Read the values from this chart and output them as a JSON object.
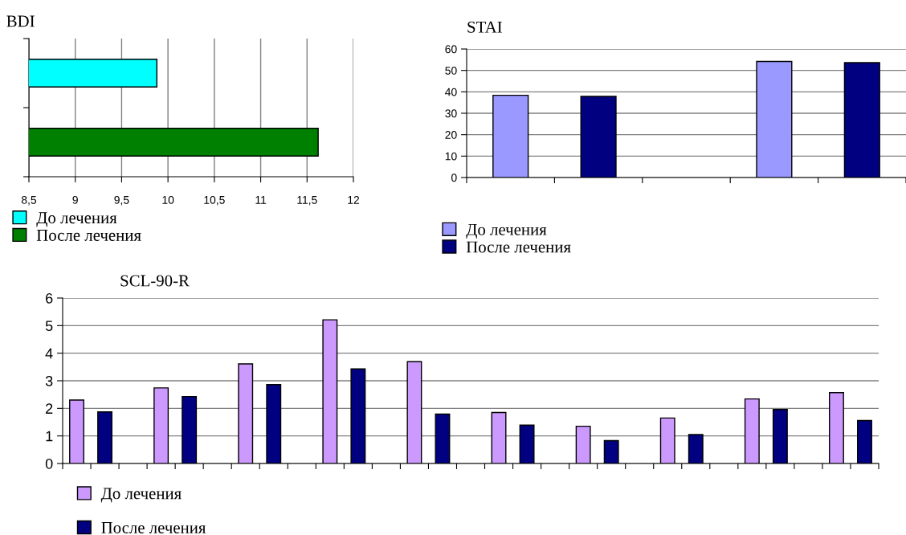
{
  "chart_data": [
    {
      "type": "bar",
      "title": "BDI",
      "orientation": "horizontal",
      "stacked": true,
      "categories": [
        null,
        null
      ],
      "xlim": [
        8.5,
        12
      ],
      "xticks": [
        {
          "value": 8.5,
          "label": "8,5"
        },
        9,
        {
          "value": 9.5,
          "label": "9,5"
        },
        10,
        {
          "value": 10.5,
          "label": "10,5"
        },
        11,
        {
          "value": 11.5,
          "label": "11,5"
        },
        12
      ],
      "grid": "x",
      "legend": "bottom",
      "tick_labels": "x",
      "series": [
        {
          "name": "До лечения",
          "color": "#00ffff",
          "values": [
            9.88,
            null
          ]
        },
        {
          "name": "После лечения",
          "color": "#008000",
          "values": [
            null,
            11.62
          ]
        }
      ]
    },
    {
      "type": "bar",
      "title": "STAI",
      "stacked": true,
      "categories": [
        null,
        null,
        null,
        null,
        null
      ],
      "ylim": [
        0,
        60
      ],
      "yticks": [
        0,
        10,
        20,
        30,
        40,
        50,
        60
      ],
      "grid": "y",
      "legend": "bottom",
      "tick_labels": "y",
      "series": [
        {
          "name": "До лечения",
          "color": "#9999ff",
          "values": [
            38.4,
            null,
            null,
            54.2,
            null
          ]
        },
        {
          "name": "После лечения",
          "color": "#000080",
          "values": [
            null,
            37.9,
            null,
            null,
            53.6
          ]
        }
      ]
    },
    {
      "type": "bar",
      "title": "SCL-90-R",
      "stacked": true,
      "categories": [
        null,
        null,
        null,
        null,
        null,
        null,
        null,
        null,
        null,
        null,
        null,
        null,
        null,
        null,
        null,
        null,
        null,
        null,
        null,
        null,
        null,
        null,
        null,
        null,
        null,
        null,
        null,
        null,
        null
      ],
      "ylim": [
        0,
        6
      ],
      "yticks": [
        0,
        1,
        2,
        3,
        4,
        5,
        6
      ],
      "grid": "y",
      "legend": "bottom",
      "tick_labels": "y",
      "series": [
        {
          "name": "До лечения",
          "color": "#cc99ff",
          "values": [
            2.3,
            null,
            null,
            2.74,
            null,
            null,
            3.61,
            null,
            null,
            5.21,
            null,
            null,
            3.69,
            null,
            null,
            1.85,
            null,
            null,
            1.35,
            null,
            null,
            1.65,
            null,
            null,
            2.34,
            null,
            null,
            2.57,
            null
          ]
        },
        {
          "name": "После лечения",
          "color": "#000080",
          "values": [
            null,
            1.87,
            null,
            null,
            2.43,
            null,
            null,
            2.86,
            null,
            null,
            3.43,
            null,
            null,
            1.79,
            null,
            null,
            1.39,
            null,
            null,
            0.83,
            null,
            null,
            1.05,
            null,
            null,
            1.96,
            null,
            null,
            1.56
          ]
        }
      ]
    }
  ]
}
